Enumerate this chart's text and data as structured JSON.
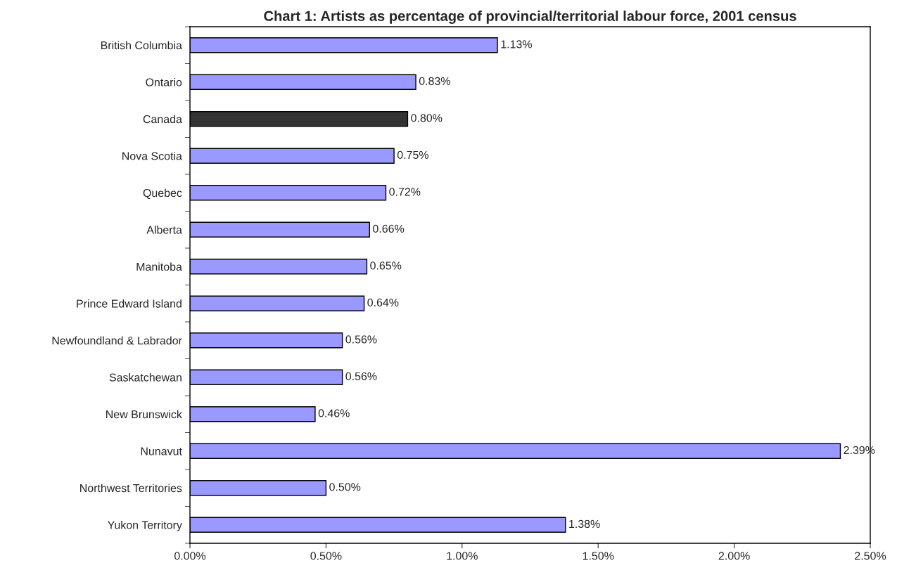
{
  "chart_data": {
    "type": "bar",
    "orientation": "horizontal",
    "title": "Chart 1: Artists as percentage of provincial/territorial labour force, 2001 census",
    "categories": [
      "British Columbia",
      "Ontario",
      "Canada",
      "Nova Scotia",
      "Quebec",
      "Alberta",
      "Manitoba",
      "Prince Edward Island",
      "Newfoundland & Labrador",
      "Saskatchewan",
      "New Brunswick",
      "Nunavut",
      "Northwest Territories",
      "Yukon Territory"
    ],
    "values": [
      1.13,
      0.83,
      0.8,
      0.75,
      0.72,
      0.66,
      0.65,
      0.64,
      0.56,
      0.56,
      0.46,
      2.39,
      0.5,
      1.38
    ],
    "colors": [
      "#9999ff",
      "#9999ff",
      "#333333",
      "#9999ff",
      "#9999ff",
      "#9999ff",
      "#9999ff",
      "#9999ff",
      "#9999ff",
      "#9999ff",
      "#9999ff",
      "#9999ff",
      "#9999ff",
      "#9999ff"
    ],
    "value_labels": [
      "1.13%",
      "0.83%",
      "0.80%",
      "0.75%",
      "0.72%",
      "0.66%",
      "0.65%",
      "0.64%",
      "0.56%",
      "0.56%",
      "0.46%",
      "2.39%",
      "0.50%",
      "1.38%"
    ],
    "xlim": [
      0,
      2.5
    ],
    "xticks": [
      {
        "value": 0,
        "label": "0.00%"
      },
      {
        "value": 0.5,
        "label": "0.50%"
      },
      {
        "value": 1.0,
        "label": "1.00%"
      },
      {
        "value": 1.5,
        "label": "1.50%"
      },
      {
        "value": 2.0,
        "label": "2.00%"
      },
      {
        "value": 2.5,
        "label": "2.50%"
      }
    ],
    "grid": false,
    "legend": false
  }
}
